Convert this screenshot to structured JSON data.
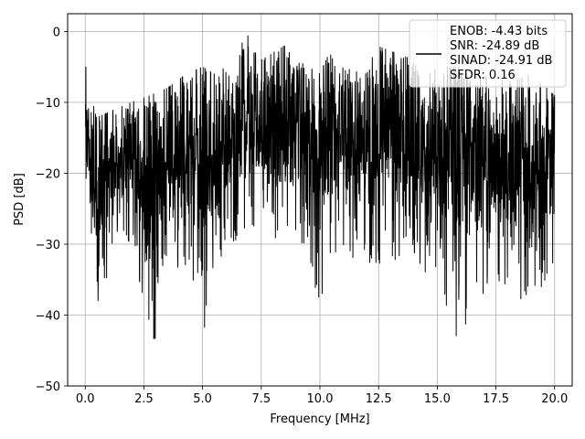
{
  "chart_data": {
    "type": "line",
    "title": "",
    "xlabel": "Frequency [MHz]",
    "ylabel": "PSD [dB]",
    "xlim": [
      -0.75,
      20.75
    ],
    "ylim": [
      -50,
      2.5
    ],
    "x_ticks": [
      0.0,
      2.5,
      5.0,
      7.5,
      10.0,
      12.5,
      15.0,
      17.5,
      20.0
    ],
    "x_tick_labels": [
      "0.0",
      "2.5",
      "5.0",
      "7.5",
      "10.0",
      "12.5",
      "15.0",
      "17.5",
      "20.0"
    ],
    "y_ticks": [
      0,
      -10,
      -20,
      -30,
      -40,
      -50
    ],
    "y_tick_labels": [
      "0",
      "−10",
      "−20",
      "−30",
      "−40",
      "−50"
    ],
    "grid": true,
    "legend_position": "top-right",
    "legend_entries": [
      "ENOB: -4.43 bits",
      "SNR: -24.89 dB",
      "SINAD: -24.91 dB",
      "SFDR: 0.16"
    ],
    "series": [
      {
        "color": "#000000",
        "style": "noisy-spectrum",
        "x": [
          0.0,
          0.02,
          0.1,
          0.6,
          1.25,
          2.0,
          2.8,
          3.5,
          4.3,
          5.0,
          5.5,
          6.0,
          6.5,
          6.9,
          7.0,
          7.5,
          8.5,
          9.0,
          9.5,
          10.0,
          10.4,
          10.8,
          12.0,
          12.4,
          14.0,
          14.3,
          15.0,
          16.0,
          16.5,
          18.3,
          19.0,
          20.0
        ],
        "y_upper": [
          -3,
          0,
          -9,
          -12,
          -11,
          -10,
          -9,
          -8,
          -6,
          -5,
          -6,
          -5,
          -3,
          0,
          -2,
          -4,
          -2,
          -4,
          -5,
          -6,
          -3,
          -5,
          -6,
          -2,
          -4,
          -7,
          -5,
          -5,
          -6,
          -7,
          -6,
          -9
        ],
        "y_lower": [
          -16,
          -25,
          -27,
          -41.5,
          -29,
          -30,
          -47.5,
          -37,
          -33,
          -42.5,
          -39,
          -31,
          -30,
          -29,
          -30,
          -30,
          -30,
          -29,
          -31,
          -40.5,
          -32,
          -31,
          -33,
          -33,
          -32,
          -34,
          -35,
          -45.3,
          -37,
          -37,
          -39,
          -33
        ]
      }
    ]
  }
}
